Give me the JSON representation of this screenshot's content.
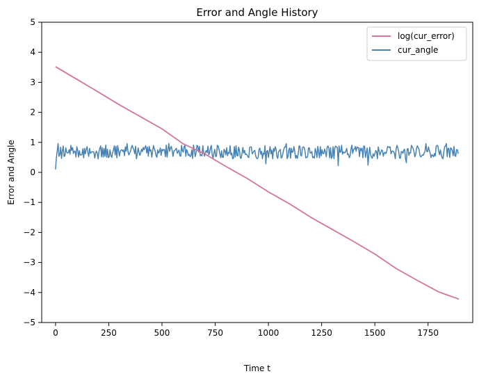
{
  "chart_data": {
    "type": "line",
    "title": "Error and Angle History",
    "xlabel": "Time t",
    "ylabel": "Error and Angle",
    "xlim": [
      -65,
      1960
    ],
    "ylim": [
      -5,
      5
    ],
    "xticks": [
      0,
      250,
      500,
      750,
      1000,
      1250,
      1500,
      1750
    ],
    "yticks": [
      -5,
      -4,
      -3,
      -2,
      -1,
      0,
      1,
      2,
      3,
      4,
      5
    ],
    "legend_position": "top-right",
    "grid": false,
    "series": [
      {
        "name": "log(cur_error)",
        "color": "#d5739b",
        "style": "decreasing-line",
        "x": [
          0,
          100,
          200,
          300,
          400,
          500,
          600,
          700,
          800,
          900,
          1000,
          1100,
          1200,
          1300,
          1400,
          1500,
          1600,
          1700,
          1800,
          1895
        ],
        "y": [
          3.52,
          3.1,
          2.68,
          2.25,
          1.85,
          1.45,
          0.95,
          0.62,
          0.2,
          -0.2,
          -0.65,
          -1.05,
          -1.5,
          -1.9,
          -2.3,
          -2.72,
          -3.2,
          -3.6,
          -3.98,
          -4.22
        ]
      },
      {
        "name": "cur_angle",
        "color": "#4682b4",
        "style": "noisy-line",
        "x_start": 0,
        "x_end": 1895,
        "start_value": 0.1,
        "mean": 0.68,
        "band_min": 0.43,
        "band_max": 0.91,
        "spike_min": 0.22,
        "spike_max": 0.96
      }
    ]
  }
}
